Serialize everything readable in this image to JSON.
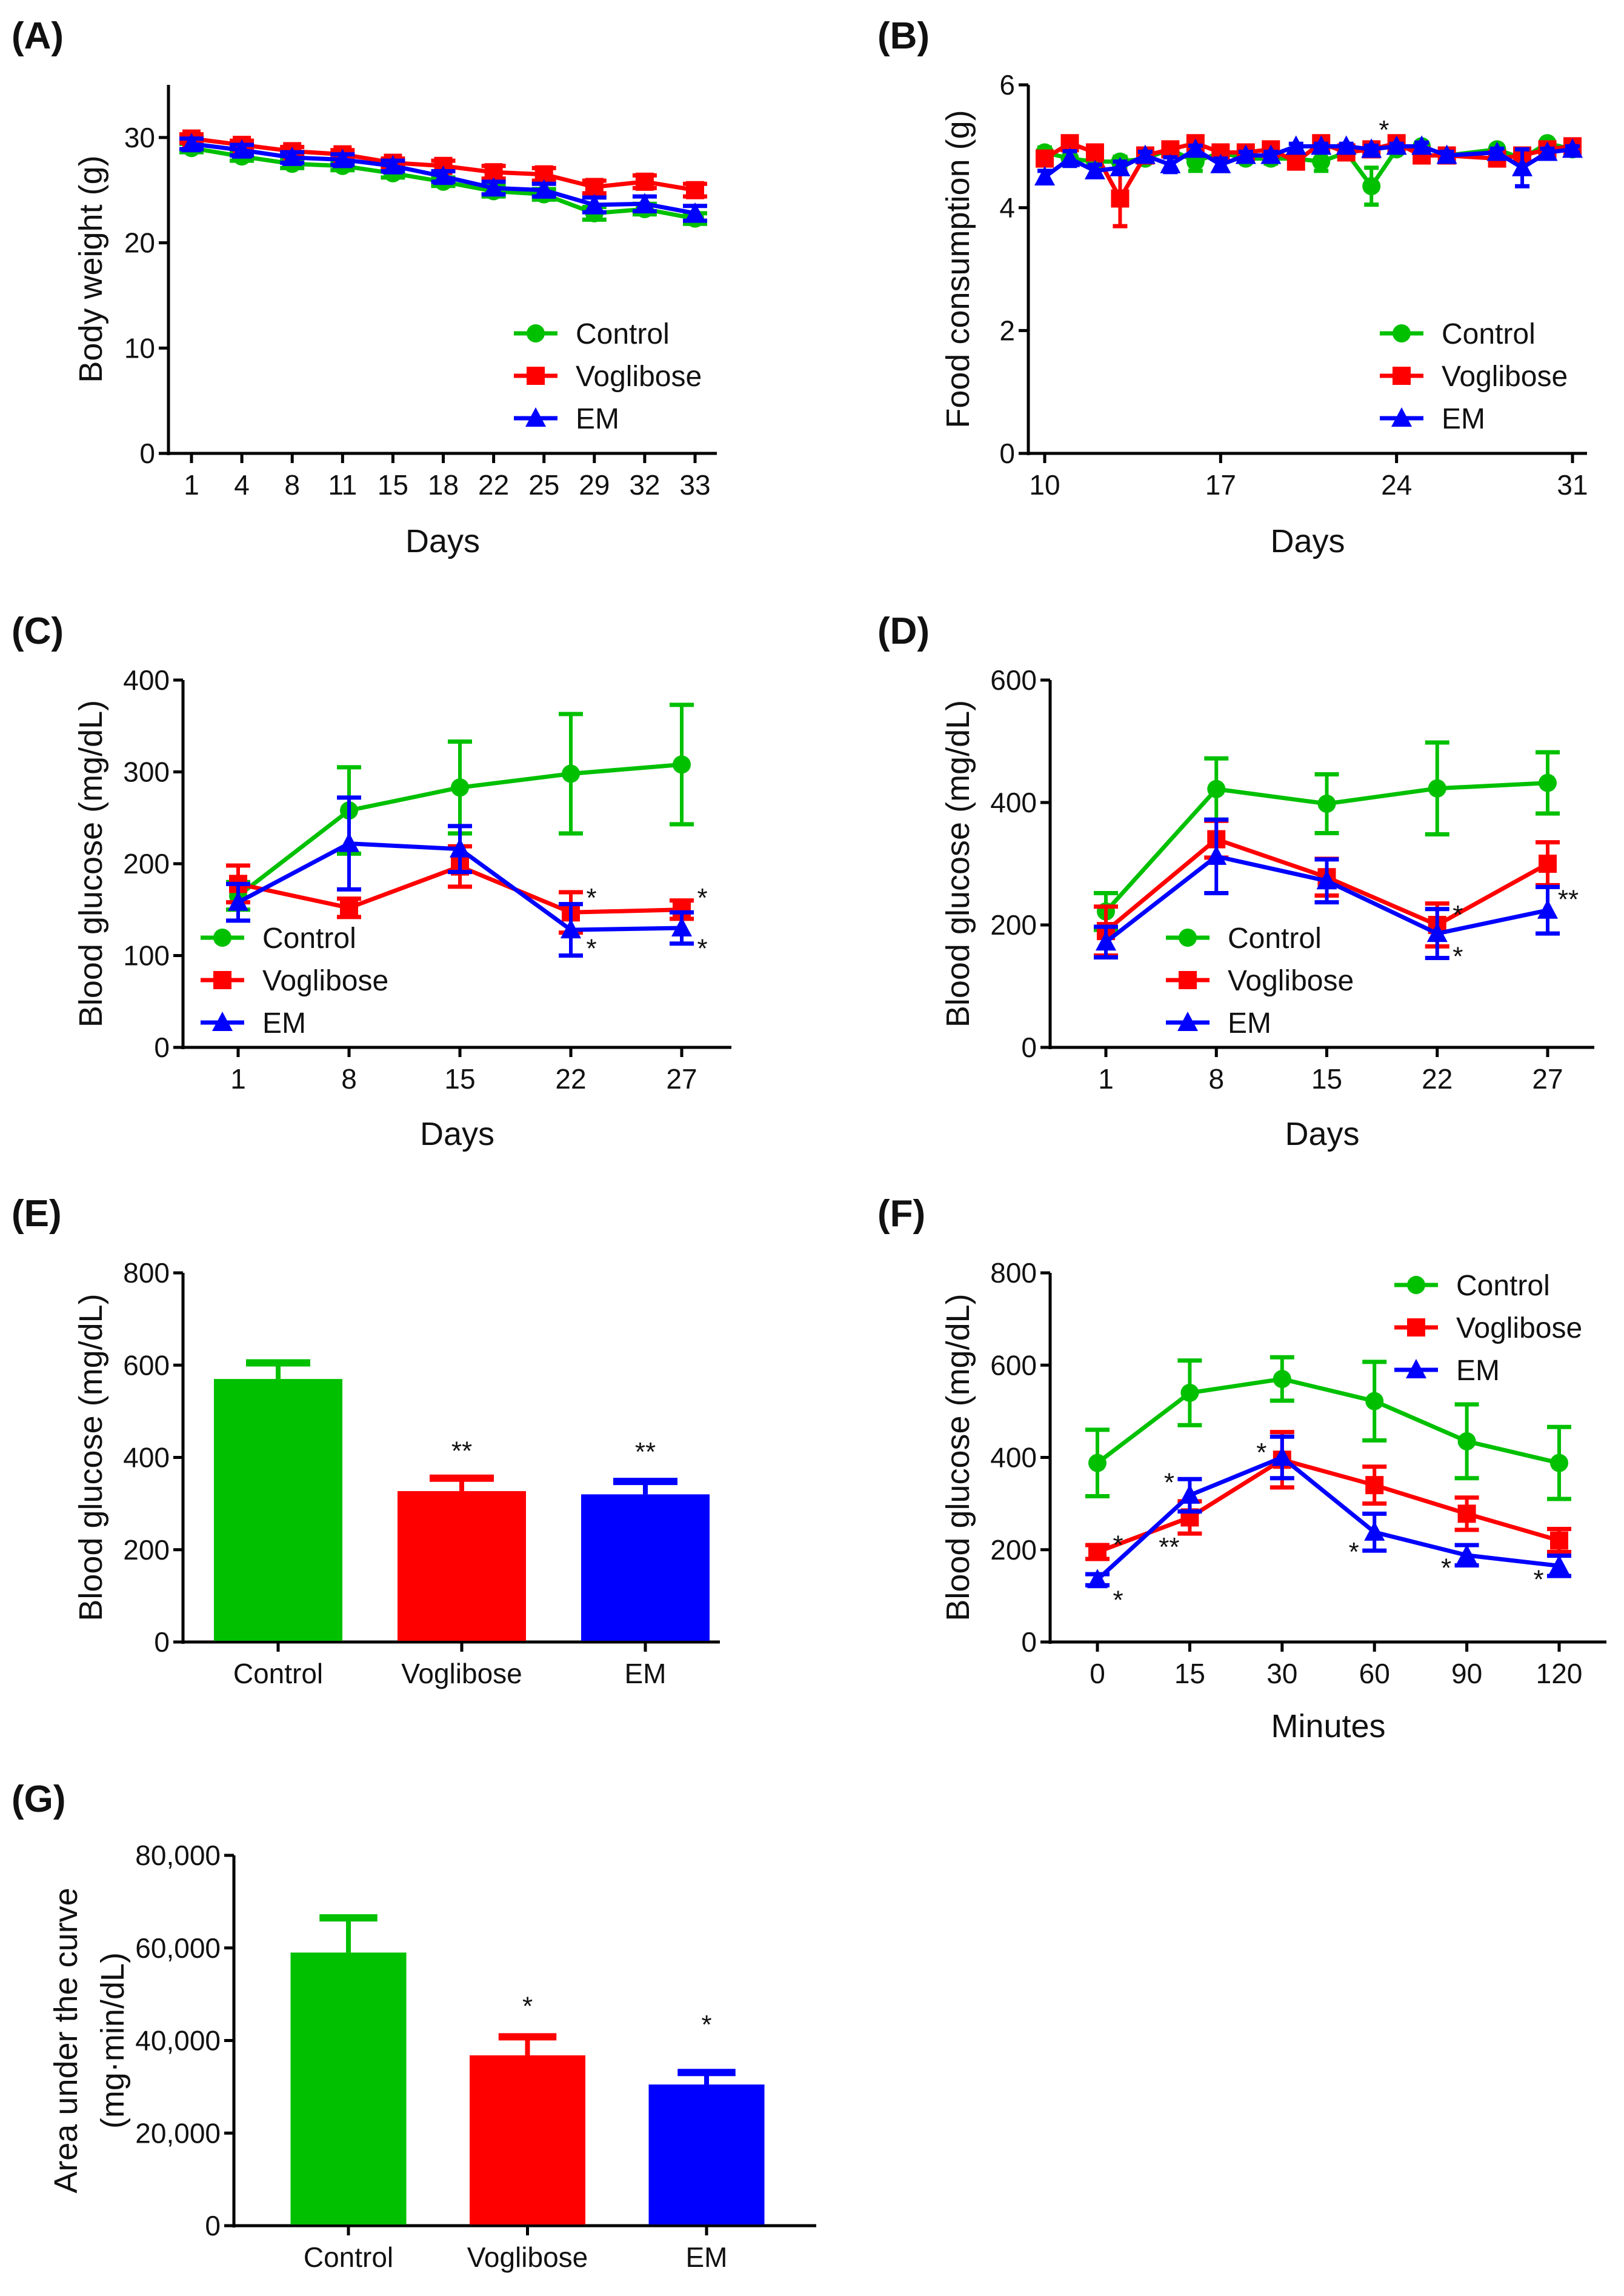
{
  "colors": {
    "Control": "#00c000",
    "Voglibose": "#ff0000",
    "EM": "#0000ff"
  },
  "markers": {
    "Control": "circle",
    "Voglibose": "square",
    "EM": "triangle"
  },
  "chart_data": [
    {
      "panel": "(A)",
      "type": "line",
      "xaxis": "categorical",
      "categories": [
        "1",
        "4",
        "8",
        "11",
        "15",
        "18",
        "22",
        "25",
        "29",
        "32",
        "33"
      ],
      "xlabel": "Days",
      "ylabel": [
        "Body weight (g)"
      ],
      "ylim": [
        0,
        35
      ],
      "yticks": [
        0,
        10,
        20,
        30
      ],
      "ytick_labels": [
        "0",
        "10",
        "20",
        "30"
      ],
      "legend": "bottom-right",
      "grid": false,
      "series": [
        {
          "name": "Control",
          "values": [
            29.0,
            28.2,
            27.5,
            27.3,
            26.6,
            25.8,
            24.9,
            24.6,
            22.8,
            23.2,
            22.3
          ],
          "errors": [
            0.4,
            0.4,
            0.4,
            0.4,
            0.4,
            0.4,
            0.5,
            0.5,
            0.6,
            0.5,
            0.5
          ]
        },
        {
          "name": "Voglibose",
          "values": [
            29.9,
            29.3,
            28.7,
            28.4,
            27.6,
            27.3,
            26.7,
            26.5,
            25.3,
            25.8,
            25.0
          ],
          "errors": [
            0.4,
            0.4,
            0.4,
            0.4,
            0.4,
            0.5,
            0.6,
            0.6,
            0.6,
            0.6,
            0.6
          ]
        },
        {
          "name": "EM",
          "values": [
            29.4,
            28.8,
            28.1,
            27.9,
            27.3,
            26.3,
            25.2,
            25.0,
            23.6,
            23.7,
            22.8
          ],
          "errors": [
            0.5,
            0.5,
            0.5,
            0.5,
            0.5,
            0.5,
            0.6,
            0.6,
            0.7,
            0.7,
            0.7
          ]
        }
      ],
      "annotations": []
    },
    {
      "panel": "(B)",
      "type": "line",
      "xaxis": "linear",
      "x": [
        10,
        11,
        12,
        13,
        14,
        15,
        16,
        17,
        18,
        19,
        20,
        21,
        22,
        23,
        24,
        25,
        26,
        28,
        29,
        30,
        31
      ],
      "xlim": [
        10,
        31
      ],
      "xticks": [
        10,
        17,
        24,
        31
      ],
      "xtick_labels": [
        "10",
        "17",
        "24",
        "31"
      ],
      "xlabel": "Days",
      "ylabel": [
        "Food consumption (g)"
      ],
      "ylim": [
        0,
        6
      ],
      "yticks": [
        0,
        2,
        4,
        6
      ],
      "ytick_labels": [
        "0",
        "2",
        "4",
        "6"
      ],
      "legend": "bottom-right",
      "grid": false,
      "series": [
        {
          "name": "Control",
          "values": [
            4.9,
            4.8,
            4.75,
            4.75,
            4.8,
            4.95,
            4.75,
            4.9,
            4.8,
            4.8,
            4.8,
            4.75,
            4.9,
            4.35,
            4.95,
            5.0,
            4.85,
            4.95,
            4.8,
            5.05,
            4.95
          ],
          "errors": [
            0.08,
            0.08,
            0.08,
            0.08,
            0.06,
            0.06,
            0.15,
            0.08,
            0.06,
            0.08,
            0.08,
            0.15,
            0.06,
            0.3,
            0.06,
            0.06,
            0.06,
            0.06,
            0.06,
            0.05,
            0.06
          ]
        },
        {
          "name": "Voglibose",
          "values": [
            4.8,
            5.05,
            4.9,
            4.15,
            4.85,
            4.95,
            5.05,
            4.9,
            4.9,
            4.95,
            4.75,
            5.05,
            4.9,
            4.95,
            5.05,
            4.85,
            4.85,
            4.8,
            4.85,
            4.95,
            5.0
          ],
          "errors": [
            0.1,
            0.06,
            0.06,
            0.45,
            0.06,
            0.06,
            0.06,
            0.06,
            0.06,
            0.06,
            0.08,
            0.06,
            0.06,
            0.06,
            0.05,
            0.06,
            0.05,
            0.06,
            0.06,
            0.05,
            0.05
          ]
        },
        {
          "name": "EM",
          "values": [
            4.5,
            4.8,
            4.6,
            4.65,
            4.85,
            4.7,
            4.95,
            4.7,
            4.85,
            4.85,
            5.0,
            5.0,
            5.0,
            4.95,
            5.0,
            5.0,
            4.85,
            4.9,
            4.65,
            4.9,
            4.95
          ],
          "errors": [
            0.1,
            0.12,
            0.1,
            0.1,
            0.06,
            0.12,
            0.06,
            0.1,
            0.06,
            0.06,
            0.04,
            0.04,
            0.04,
            0.06,
            0.04,
            0.06,
            0.06,
            0.06,
            0.3,
            0.06,
            0.05
          ]
        }
      ],
      "annotations": [
        {
          "text": "*",
          "x": 23.5,
          "y": 5.3
        }
      ]
    },
    {
      "panel": "(C)",
      "type": "line",
      "xaxis": "categorical",
      "categories": [
        "1",
        "8",
        "15",
        "22",
        "27"
      ],
      "xlabel": "Days",
      "ylabel": [
        "Blood glucose (mg/dL)"
      ],
      "ylim": [
        0,
        400
      ],
      "yticks": [
        0,
        100,
        200,
        300,
        400
      ],
      "ytick_labels": [
        "0",
        "100",
        "200",
        "300",
        "400"
      ],
      "legend": "bottom-left",
      "grid": false,
      "series": [
        {
          "name": "Control",
          "values": [
            165,
            258,
            283,
            298,
            308
          ],
          "errors": [
            15,
            47,
            50,
            65,
            65
          ]
        },
        {
          "name": "Voglibose",
          "values": [
            178,
            152,
            197,
            147,
            150
          ],
          "errors": [
            20,
            10,
            22,
            22,
            10
          ]
        },
        {
          "name": "EM",
          "values": [
            158,
            222,
            216,
            128,
            130
          ],
          "errors": [
            20,
            50,
            25,
            28,
            17
          ]
        }
      ],
      "annotations": [
        {
          "text": "*",
          "x": "22",
          "y": 165,
          "side": "right"
        },
        {
          "text": "*",
          "x": "27",
          "y": 165,
          "side": "right"
        },
        {
          "text": "*",
          "x": "22",
          "y": 110,
          "side": "right"
        },
        {
          "text": "*",
          "x": "27",
          "y": 110,
          "side": "right"
        }
      ]
    },
    {
      "panel": "(D)",
      "type": "line",
      "xaxis": "categorical",
      "categories": [
        "1",
        "8",
        "15",
        "22",
        "27"
      ],
      "xlabel": "Days",
      "ylabel": [
        "Blood glucose (mg/dL)"
      ],
      "ylim": [
        0,
        600
      ],
      "yticks": [
        0,
        200,
        400,
        600
      ],
      "ytick_labels": [
        "0",
        "200",
        "400",
        "600"
      ],
      "legend": "bottom-center",
      "grid": false,
      "series": [
        {
          "name": "Control",
          "values": [
            222,
            422,
            398,
            423,
            432
          ],
          "errors": [
            30,
            50,
            48,
            75,
            50
          ]
        },
        {
          "name": "Voglibose",
          "values": [
            190,
            340,
            278,
            200,
            300
          ],
          "errors": [
            40,
            30,
            30,
            35,
            35
          ]
        },
        {
          "name": "EM",
          "values": [
            172,
            312,
            272,
            186,
            224
          ],
          "errors": [
            25,
            60,
            35,
            40,
            38
          ]
        }
      ],
      "annotations": [
        {
          "text": "*",
          "x": "22",
          "y": 220,
          "side": "right"
        },
        {
          "text": "*",
          "x": "22",
          "y": 152,
          "side": "right"
        },
        {
          "text": "**",
          "x": "27",
          "y": 245,
          "side": "right"
        }
      ]
    },
    {
      "panel": "(E)",
      "type": "bar",
      "xaxis": "categorical",
      "categories": [
        "Control",
        "Voglibose",
        "EM"
      ],
      "xlabel": "",
      "ylabel": [
        "Blood glucose (mg/dL)"
      ],
      "ylim": [
        0,
        800
      ],
      "yticks": [
        0,
        200,
        400,
        600,
        800
      ],
      "ytick_labels": [
        "0",
        "200",
        "400",
        "600",
        "800"
      ],
      "grid": false,
      "values": [
        570,
        327,
        320
      ],
      "errors": [
        35,
        28,
        28
      ],
      "annotations": [
        {
          "text": "**",
          "x": "Voglibose",
          "y": 395
        },
        {
          "text": "**",
          "x": "EM",
          "y": 393
        }
      ]
    },
    {
      "panel": "(F)",
      "type": "line",
      "xaxis": "categorical",
      "categories": [
        "0",
        "15",
        "30",
        "60",
        "90",
        "120"
      ],
      "xlabel": "Minutes",
      "ylabel": [
        "Blood glucose (mg/dL)"
      ],
      "ylim": [
        0,
        800
      ],
      "yticks": [
        0,
        200,
        400,
        600,
        800
      ],
      "ytick_labels": [
        "0",
        "200",
        "400",
        "600",
        "800"
      ],
      "legend": "top-right",
      "grid": false,
      "series": [
        {
          "name": "Control",
          "values": [
            388,
            540,
            570,
            522,
            435,
            388
          ],
          "errors": [
            72,
            70,
            47,
            85,
            80,
            78
          ]
        },
        {
          "name": "Voglibose",
          "values": [
            195,
            270,
            395,
            340,
            278,
            220
          ],
          "errors": [
            15,
            35,
            60,
            40,
            35,
            25
          ]
        },
        {
          "name": "EM",
          "values": [
            135,
            318,
            400,
            238,
            188,
            165
          ],
          "errors": [
            12,
            35,
            45,
            40,
            22,
            22
          ]
        }
      ],
      "annotations": [
        {
          "text": "*",
          "x": "0",
          "y": 215,
          "side": "right"
        },
        {
          "text": "*",
          "x": "0",
          "y": 95,
          "side": "right"
        },
        {
          "text": "*",
          "x": "15",
          "y": 350,
          "side": "left"
        },
        {
          "text": "**",
          "x": "15",
          "y": 210,
          "side": "left"
        },
        {
          "text": "*",
          "x": "30",
          "y": 415,
          "side": "left"
        },
        {
          "text": "*",
          "x": "60",
          "y": 200,
          "side": "left"
        },
        {
          "text": "*",
          "x": "90",
          "y": 165,
          "side": "left"
        },
        {
          "text": "*",
          "x": "120",
          "y": 140,
          "side": "left"
        }
      ]
    },
    {
      "panel": "(G)",
      "type": "bar",
      "xaxis": "categorical",
      "categories": [
        "Control",
        "Voglibose",
        "EM"
      ],
      "xlabel": "",
      "ylabel": [
        "Area under the curve",
        "(mg·min/dL)"
      ],
      "ylim": [
        0,
        80000
      ],
      "yticks": [
        0,
        20000,
        40000,
        60000,
        80000
      ],
      "ytick_labels": [
        "0",
        "20,000",
        "40,000",
        "60,000",
        "80,000"
      ],
      "grid": false,
      "values": [
        59000,
        36800,
        30500
      ],
      "errors": [
        7500,
        4000,
        2600
      ],
      "annotations": [
        {
          "text": "*",
          "x": "Voglibose",
          "y": 45500
        },
        {
          "text": "*",
          "x": "EM",
          "y": 41500
        }
      ]
    }
  ]
}
